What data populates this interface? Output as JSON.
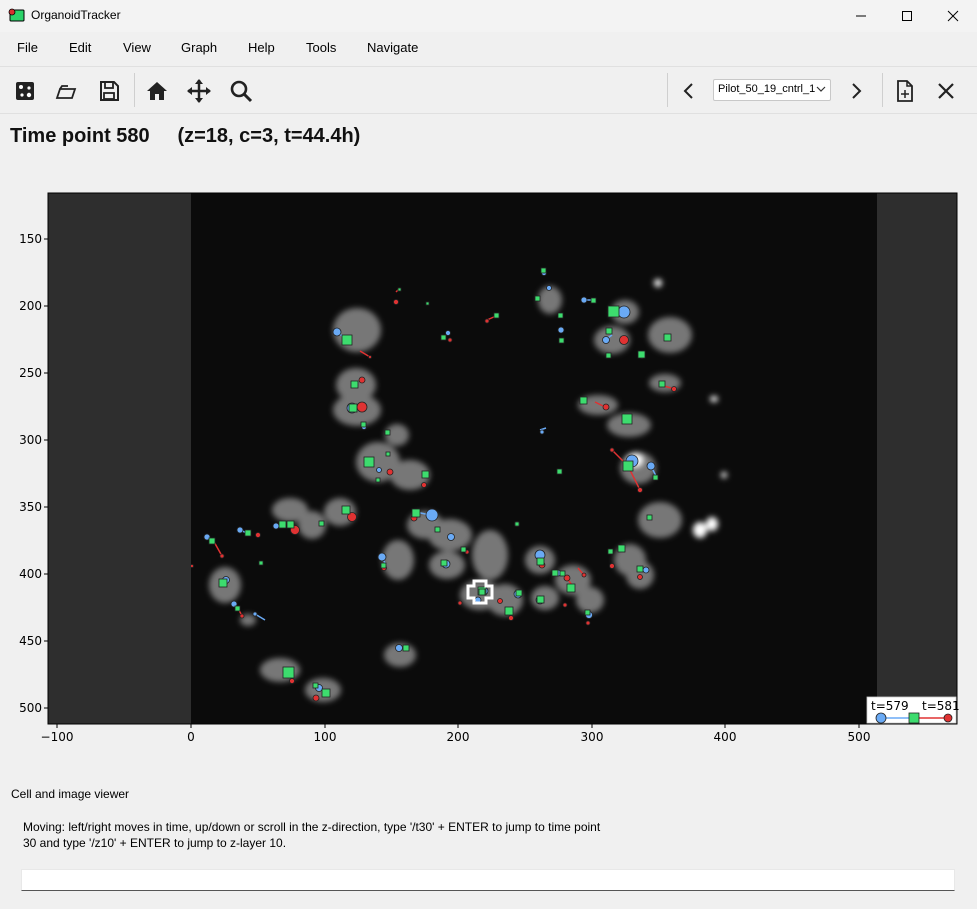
{
  "window": {
    "title": "OrganoidTracker"
  },
  "menu": [
    "File",
    "Edit",
    "View",
    "Graph",
    "Help",
    "Tools",
    "Navigate"
  ],
  "toolbar": {
    "icons": [
      "new-file-icon",
      "load-icon",
      "save-icon",
      "home-icon",
      "move-icon",
      "zoom-icon",
      "previous-icon",
      "next-icon",
      "add-experiment-icon",
      "close-experiment-icon"
    ],
    "experiment_selected": "Pilot_50_19_cntrl_1"
  },
  "header": {
    "title": "Time point 580     (z=18, c=3, t=44.4h)"
  },
  "image_viewer": {
    "x_ticks": [
      "−100",
      "0",
      "100",
      "200",
      "300",
      "400",
      "500"
    ],
    "y_ticks": [
      "150",
      "200",
      "250",
      "300",
      "350",
      "400",
      "450",
      "500"
    ],
    "legend": {
      "left": "t=579",
      "right": "t=581"
    },
    "colors": {
      "previous": "#6aaaf5",
      "current": "#3ddc6e",
      "next": "#e03232"
    }
  },
  "status": {
    "label": "Cell and image viewer",
    "help": "Moving: left/right moves in time, up/down or scroll in the z-direction, type '/t30' + ENTER to jump to time point 30 and type '/z10' + ENTER to jump to z-layer 10."
  },
  "command_input": {
    "value": ""
  }
}
